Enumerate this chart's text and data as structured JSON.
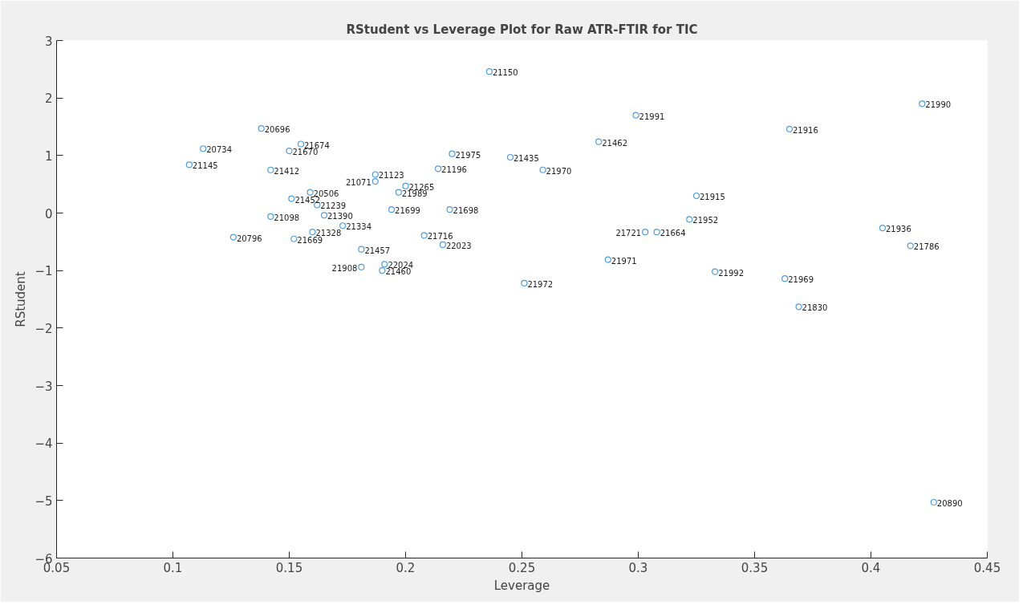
{
  "chart_data": {
    "type": "scatter",
    "title": "RStudent vs Leverage Plot for Raw ATR-FTIR for TIC",
    "xlabel": "Leverage",
    "ylabel": "RStudent",
    "xlim": [
      0.05,
      0.45
    ],
    "ylim": [
      -6,
      3
    ],
    "xticks": [
      0.05,
      0.1,
      0.15,
      0.2,
      0.25,
      0.3,
      0.35,
      0.4,
      0.45
    ],
    "yticks": [
      -6,
      -5,
      -4,
      -3,
      -2,
      -1,
      0,
      1,
      2,
      3
    ],
    "grid": false,
    "marker": "circle",
    "series": [
      {
        "color": "#4d9de0",
        "x": [
          0.236,
          0.422,
          0.299,
          0.365,
          0.283,
          0.138,
          0.113,
          0.155,
          0.15,
          0.107,
          0.142,
          0.22,
          0.245,
          0.214,
          0.259,
          0.187,
          0.187,
          0.2,
          0.197,
          0.159,
          0.151,
          0.162,
          0.325,
          0.142,
          0.165,
          0.194,
          0.219,
          0.173,
          0.16,
          0.126,
          0.152,
          0.322,
          0.208,
          0.216,
          0.303,
          0.308,
          0.405,
          0.417,
          0.181,
          0.287,
          0.181,
          0.191,
          0.19,
          0.251,
          0.333,
          0.363,
          0.369,
          0.427
        ],
        "values": [
          2.46,
          1.9,
          1.7,
          1.46,
          1.24,
          1.47,
          1.12,
          1.2,
          1.08,
          0.84,
          0.75,
          1.03,
          0.97,
          0.77,
          0.75,
          0.67,
          0.55,
          0.47,
          0.36,
          0.36,
          0.25,
          0.14,
          0.3,
          -0.06,
          -0.04,
          0.06,
          0.06,
          -0.22,
          -0.33,
          -0.42,
          -0.45,
          -0.11,
          -0.39,
          -0.55,
          -0.33,
          -0.33,
          -0.26,
          -0.57,
          -0.63,
          -0.81,
          -0.94,
          -0.89,
          -1.0,
          -1.22,
          -1.02,
          -1.14,
          -1.63,
          -5.03
        ]
      }
    ],
    "annotations": [
      {
        "text": "21150",
        "x": 0.236,
        "y": 2.46
      },
      {
        "text": "21990",
        "x": 0.422,
        "y": 1.9
      },
      {
        "text": "21991",
        "x": 0.299,
        "y": 1.7
      },
      {
        "text": "21916",
        "x": 0.365,
        "y": 1.46
      },
      {
        "text": "21462",
        "x": 0.283,
        "y": 1.24
      },
      {
        "text": "20696",
        "x": 0.138,
        "y": 1.47
      },
      {
        "text": "20734",
        "x": 0.113,
        "y": 1.12
      },
      {
        "text": "21674",
        "x": 0.155,
        "y": 1.2
      },
      {
        "text": "21670",
        "x": 0.15,
        "y": 1.08
      },
      {
        "text": "21145",
        "x": 0.107,
        "y": 0.84
      },
      {
        "text": "21412",
        "x": 0.142,
        "y": 0.75
      },
      {
        "text": "21975",
        "x": 0.22,
        "y": 1.03
      },
      {
        "text": "21435",
        "x": 0.245,
        "y": 0.97
      },
      {
        "text": "21196",
        "x": 0.214,
        "y": 0.77
      },
      {
        "text": "21970",
        "x": 0.259,
        "y": 0.75
      },
      {
        "text": "21123",
        "x": 0.187,
        "y": 0.67
      },
      {
        "text": "21071",
        "x": 0.187,
        "y": 0.55
      },
      {
        "text": "21265",
        "x": 0.2,
        "y": 0.47
      },
      {
        "text": "21989",
        "x": 0.197,
        "y": 0.36
      },
      {
        "text": "20506",
        "x": 0.159,
        "y": 0.36
      },
      {
        "text": "21452",
        "x": 0.151,
        "y": 0.25
      },
      {
        "text": "21239",
        "x": 0.162,
        "y": 0.14
      },
      {
        "text": "21915",
        "x": 0.325,
        "y": 0.3
      },
      {
        "text": "21098",
        "x": 0.142,
        "y": -0.06
      },
      {
        "text": "21390",
        "x": 0.165,
        "y": -0.04
      },
      {
        "text": "21699",
        "x": 0.194,
        "y": 0.06
      },
      {
        "text": "21698",
        "x": 0.219,
        "y": 0.06
      },
      {
        "text": "21334",
        "x": 0.173,
        "y": -0.22
      },
      {
        "text": "21328",
        "x": 0.16,
        "y": -0.33
      },
      {
        "text": "20796",
        "x": 0.126,
        "y": -0.42
      },
      {
        "text": "21669",
        "x": 0.152,
        "y": -0.45
      },
      {
        "text": "21952",
        "x": 0.322,
        "y": -0.11
      },
      {
        "text": "21716",
        "x": 0.208,
        "y": -0.39
      },
      {
        "text": "22023",
        "x": 0.216,
        "y": -0.55
      },
      {
        "text": "21721",
        "x": 0.303,
        "y": -0.33
      },
      {
        "text": "21664",
        "x": 0.308,
        "y": -0.33
      },
      {
        "text": "21936",
        "x": 0.405,
        "y": -0.26
      },
      {
        "text": "21786",
        "x": 0.417,
        "y": -0.57
      },
      {
        "text": "21457",
        "x": 0.181,
        "y": -0.63
      },
      {
        "text": "21971",
        "x": 0.287,
        "y": -0.81
      },
      {
        "text": "21908",
        "x": 0.181,
        "y": -0.94
      },
      {
        "text": "22024",
        "x": 0.191,
        "y": -0.89
      },
      {
        "text": "21460",
        "x": 0.19,
        "y": -1.0
      },
      {
        "text": "21972",
        "x": 0.251,
        "y": -1.22
      },
      {
        "text": "21992",
        "x": 0.333,
        "y": -1.02
      },
      {
        "text": "21969",
        "x": 0.363,
        "y": -1.14
      },
      {
        "text": "21830",
        "x": 0.369,
        "y": -1.63
      },
      {
        "text": "20890",
        "x": 0.427,
        "y": -5.03
      }
    ]
  }
}
